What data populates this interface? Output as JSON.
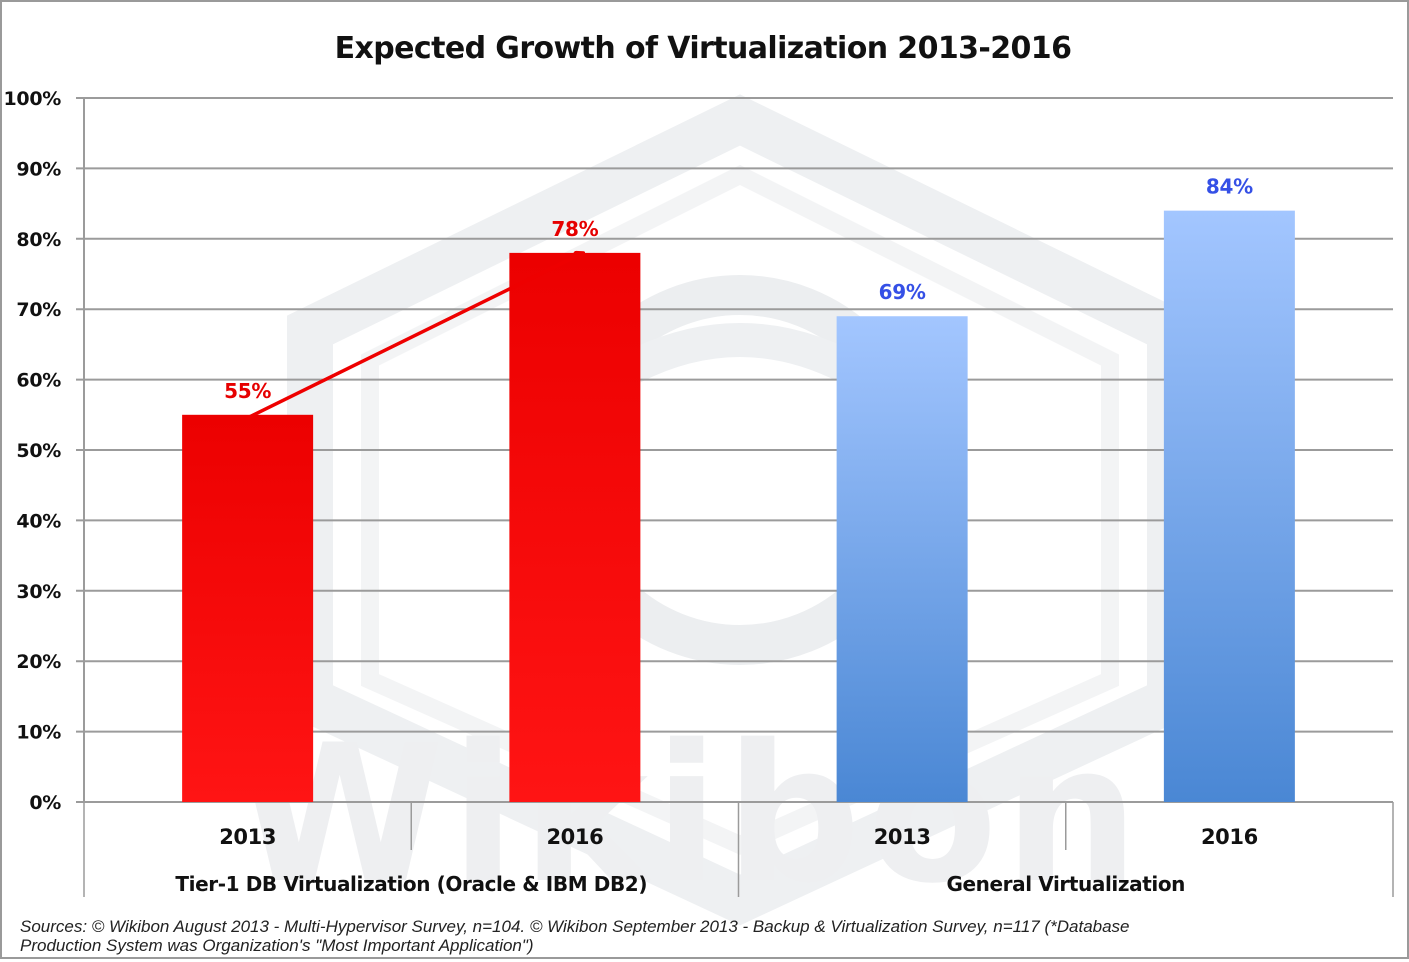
{
  "chart_data": {
    "type": "bar",
    "title": "Expected Growth of Virtualization 2013-2016",
    "xlabel": "",
    "ylabel": "",
    "ylim": [
      0,
      100
    ],
    "y_ticks": [
      "0%",
      "10%",
      "20%",
      "30%",
      "40%",
      "50%",
      "60%",
      "70%",
      "80%",
      "90%",
      "100%"
    ],
    "grid": true,
    "legend": "none",
    "groups": [
      {
        "name": "Tier-1 DB Virtualization (Oracle & IBM DB2)",
        "color": "#ee0000",
        "label_color": "#e60000",
        "categories": [
          "2013",
          "2016"
        ],
        "values": [
          55,
          78
        ],
        "labels": [
          "55%",
          "78%"
        ],
        "annotation": "arrow from 2013 to 2016 indicating growth"
      },
      {
        "name": "General Virtualization",
        "color": "#6a9fe3",
        "label_color": "#3550e6",
        "categories": [
          "2013",
          "2016"
        ],
        "values": [
          69,
          84
        ],
        "labels": [
          "69%",
          "84%"
        ]
      }
    ],
    "watermark": "Wikibon",
    "source_note": "Sources: © Wikibon August 2013 - Multi-Hypervisor Survey, n=104. © Wikibon September 2013 - Backup & Virtualization Survey, n=117 (*Database",
    "source_note_line2": "Production System was Organization's \"Most Important Application\")"
  }
}
